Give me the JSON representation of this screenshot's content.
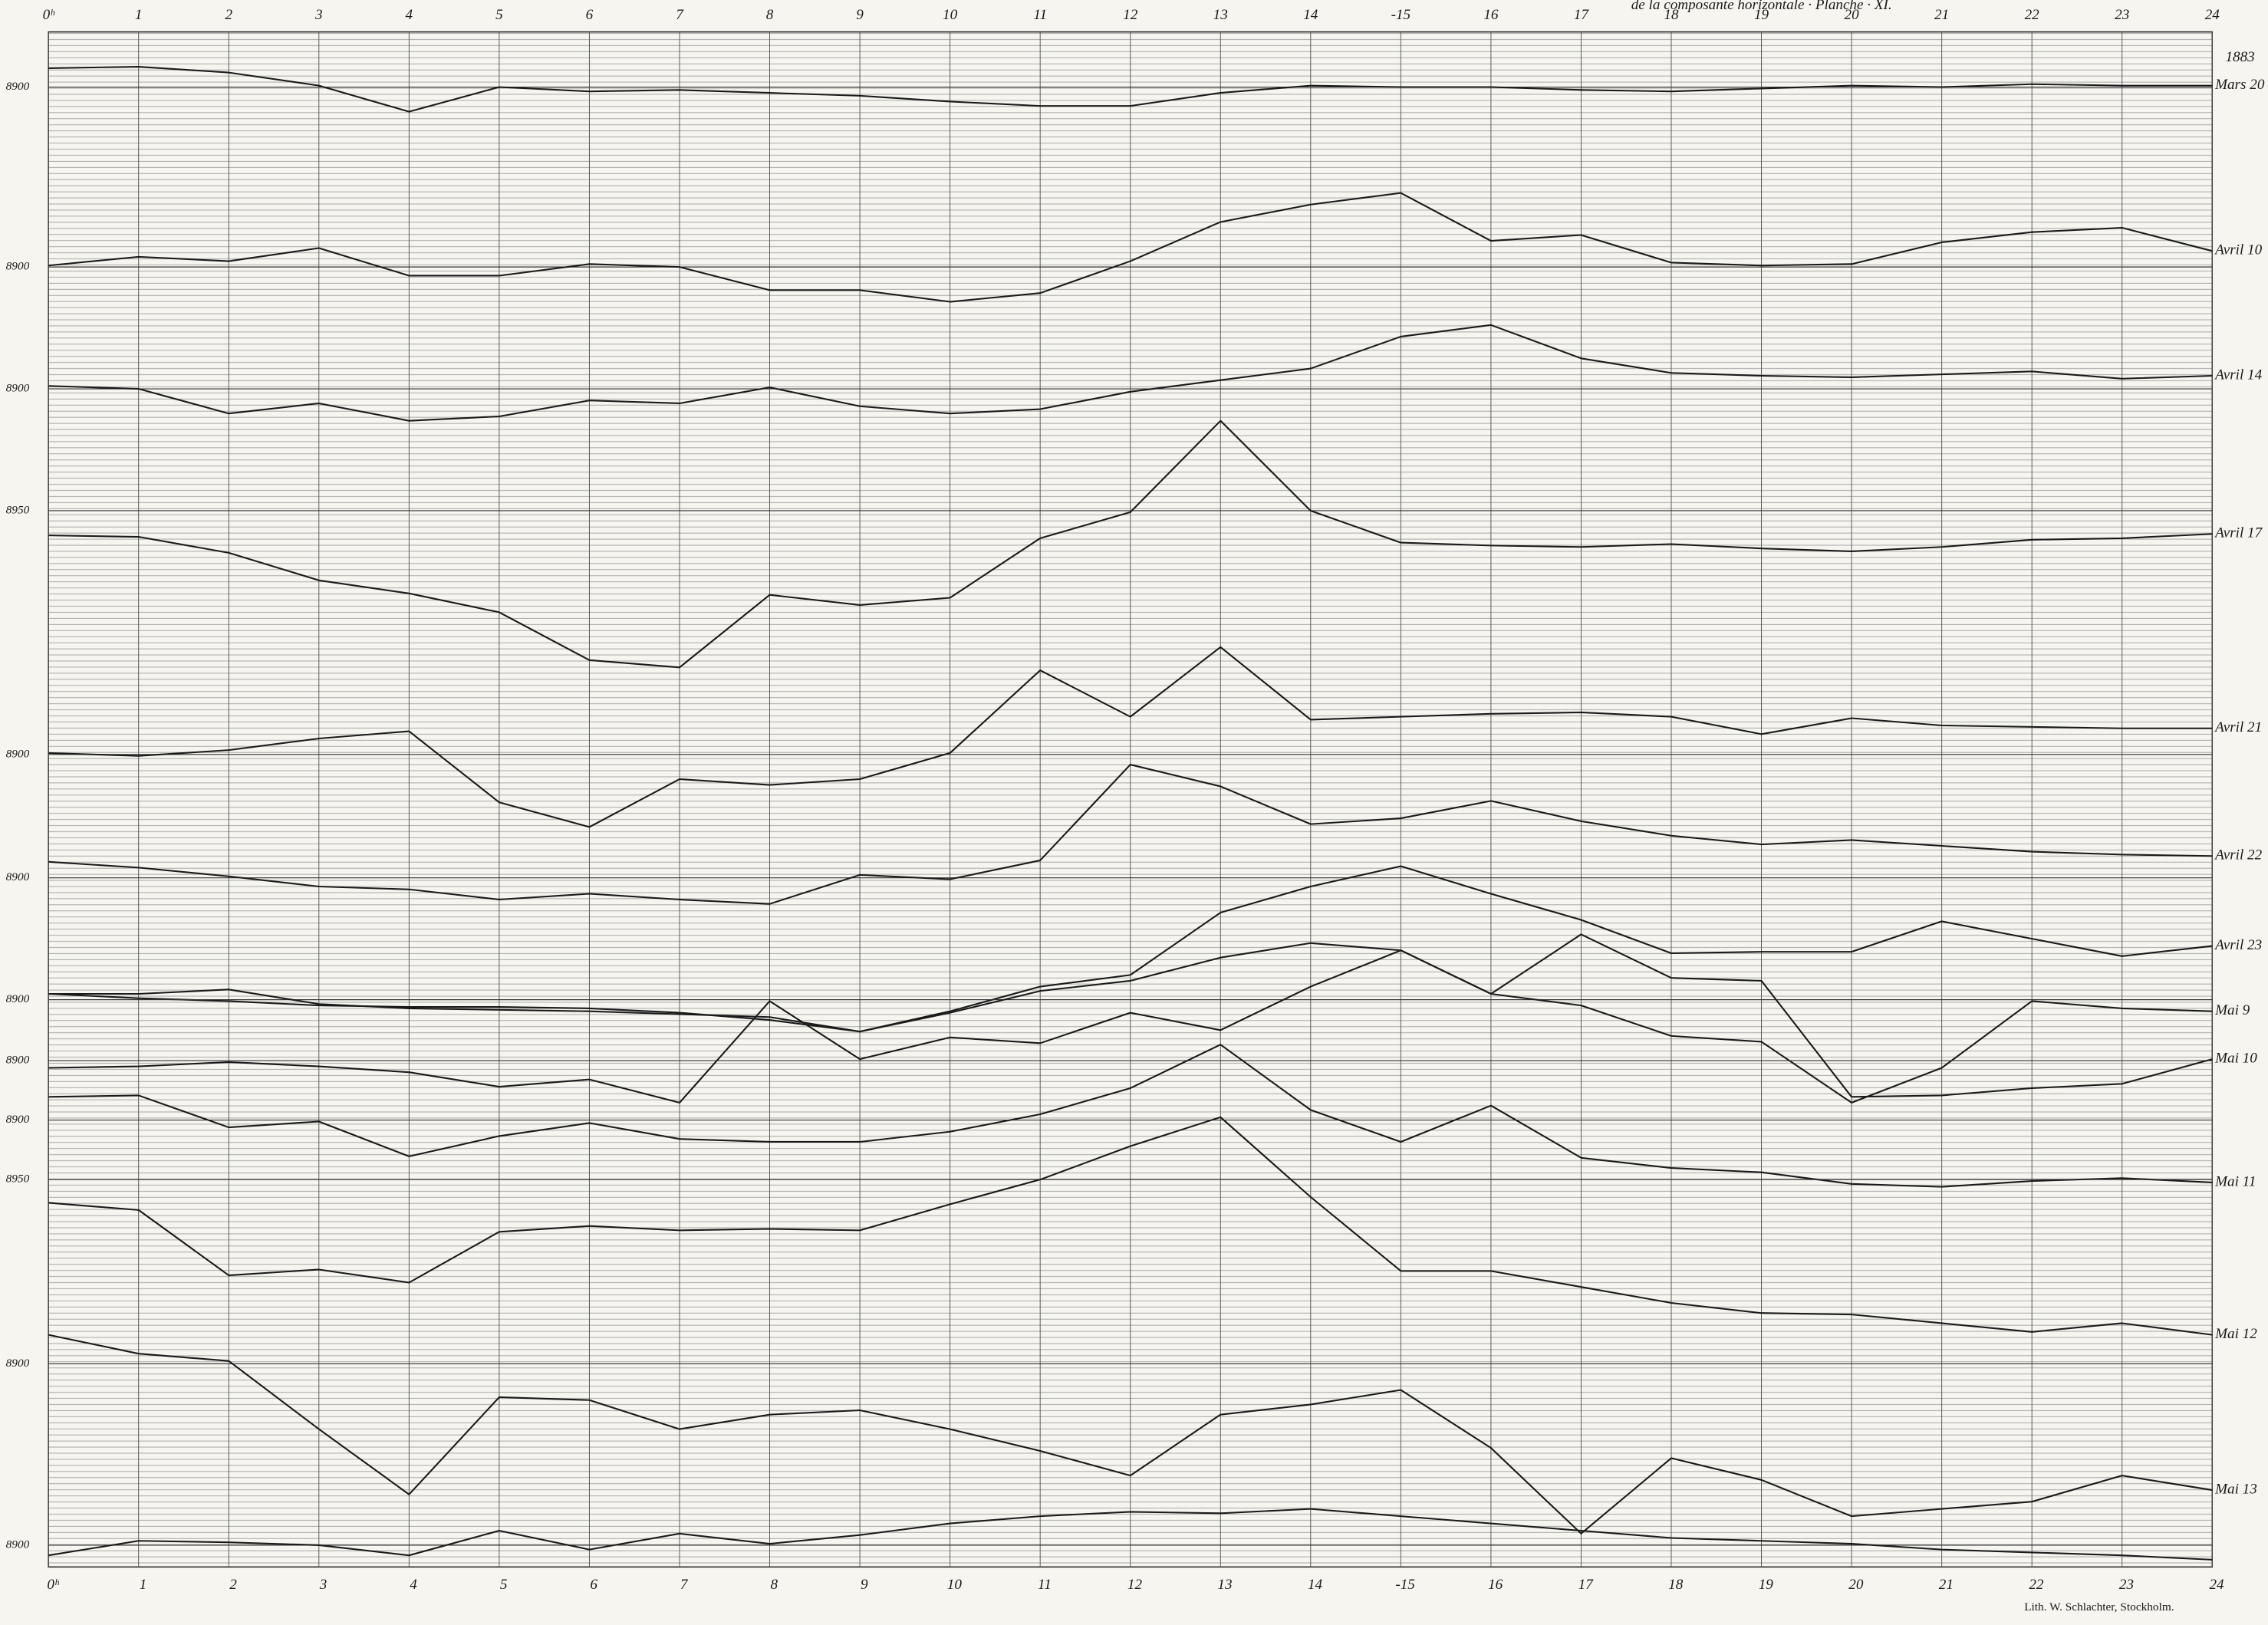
{
  "chart_data": {
    "type": "line",
    "header": "de la composante horizontale · Planche · XI.",
    "year": "1883",
    "credit": "Lith. W. Schlachter, Stockholm.",
    "categories": [
      "0ʰ",
      "1",
      "2",
      "3",
      "4",
      "5",
      "6",
      "7",
      "8",
      "9",
      "10",
      "11",
      "12",
      "13",
      "14",
      "-15",
      "16",
      "17",
      "18",
      "19",
      "20",
      "21",
      "22",
      "23",
      "24"
    ],
    "color": "#1a1a1a",
    "grid": true,
    "series": [
      {
        "name": "Mars 20",
        "ref": 8900,
        "values": [
          8906.5,
          8907,
          8905,
          8900.5,
          8891.5,
          8900,
          8898.5,
          8899,
          8898,
          8897,
          8895,
          8893.5,
          8893.5,
          8898,
          8900.5,
          8900,
          8900,
          8899,
          8898.5,
          8899.5,
          8900.5,
          8900,
          8901,
          8900.5,
          8900.5
        ]
      },
      {
        "name": "Avril 10",
        "ref": 8900,
        "values": [
          8900.5,
          8903.5,
          8902,
          8906.5,
          8897,
          8897,
          8901,
          8900,
          8892,
          8892,
          8888,
          8891,
          8902,
          8915.5,
          8921.5,
          8925.5,
          8909,
          8911,
          8901.5,
          8900.5,
          8901,
          8908.5,
          8912,
          8913.5,
          8905.5
        ]
      },
      {
        "name": "Avril 14",
        "ref": 8900,
        "values": [
          8901,
          8900,
          8891.5,
          8895,
          8889,
          8890.5,
          8896,
          8895,
          8900.5,
          8894,
          8891.5,
          8893,
          8899,
          8903,
          8907,
          8918,
          8922,
          8910.5,
          8905.5,
          8904.5,
          8904,
          8905,
          8906,
          8903.5,
          8904.5
        ]
      },
      {
        "name": "Avril 17",
        "ref": 8950,
        "values": [
          8941.5,
          8941,
          8935.5,
          8926,
          8921.5,
          8915,
          8898.5,
          8896,
          8921,
          8917.5,
          8920,
          8940.5,
          8949.5,
          8981,
          8950,
          8939,
          8938,
          8937.5,
          8938.5,
          8937,
          8936,
          8937.5,
          8940,
          8940.5,
          8942
        ]
      },
      {
        "name": "Avril 21",
        "ref": 8900,
        "values": [
          8900.5,
          8899.5,
          8901.5,
          8905.5,
          8908,
          8883.5,
          8875,
          8891.5,
          8889.5,
          8891.5,
          8900.5,
          8929,
          8913,
          8937,
          8912,
          8913,
          8914,
          8914.5,
          8913,
          8907,
          8912.5,
          8910,
          8909.5,
          8909,
          8909
        ]
      },
      {
        "name": "Avril 22",
        "ref": 8900,
        "values": [
          8905.5,
          8903.5,
          8900.5,
          8897,
          8896,
          8892.5,
          8894.5,
          8892.5,
          8891,
          8901,
          8899.5,
          8906,
          8939,
          8931.5,
          8918.5,
          8920.5,
          8926.5,
          8919.5,
          8914.5,
          8911.5,
          8913,
          8911,
          8909,
          8908,
          8907.5
        ]
      },
      {
        "name": "Avril 23",
        "values": [
          8902,
          8900.5,
          8899.5,
          8898,
          8897.5,
          8897.5,
          8897,
          8895.5,
          8893,
          8889,
          8896,
          8904.5,
          8908.5,
          8930,
          8939,
          8946,
          8936.5,
          8927.5,
          8916,
          8916.5,
          8916.5,
          8927,
          8921,
          8915,
          8918.5
        ]
      },
      {
        "name": "Mai 9",
        "ref": 8900,
        "values": [
          8902,
          8902,
          8903.5,
          8898.5,
          8897,
          8896.5,
          8896,
          8895,
          8894,
          8889,
          8895.5,
          8903,
          8906.5,
          8914.5,
          8919.5,
          8917,
          8902,
          8898,
          8887.5,
          8885.5,
          8864.5,
          8876.5,
          8899.5,
          8897,
          8896
        ]
      },
      {
        "name": "Mai 10",
        "ref": 8900,
        "values": [
          8897.5,
          8898,
          8899.5,
          8898,
          8896,
          8891,
          8893.5,
          8885.5,
          8920.5,
          8900.5,
          8908,
          8906,
          8916.5,
          8910.5,
          8925.5,
          8938,
          8923,
          8943.5,
          8928.5,
          8927.5,
          8887.5,
          8888,
          8890.5,
          8892,
          8900.5
        ]
      },
      {
        "name": "Mai 11",
        "ref": 8900,
        "values": [
          8908,
          8908.5,
          8897.5,
          8899.5,
          8887.5,
          8894.5,
          8899,
          8893.5,
          8892.5,
          8892.5,
          8896,
          8902,
          8911,
          8926,
          8903.5,
          8892.5,
          8905,
          8887,
          8883.5,
          8882,
          8878,
          8877,
          8879,
          8880,
          8878.5
        ]
      },
      {
        "name": "Mai 12",
        "ref": 8950,
        "values": [
          8942,
          8939.5,
          8917,
          8919,
          8914.5,
          8932,
          8934,
          8932.5,
          8933,
          8932.5,
          8941.5,
          8950,
          8961.5,
          8971.5,
          8944,
          8918.5,
          8918.5,
          8913,
          8907.5,
          8904,
          8903.5,
          8900.5,
          8897.5,
          8900.5,
          8896.5
        ]
      },
      {
        "name": "Mai 13",
        "ref": 8900,
        "values": [
          8910,
          8903.5,
          8901,
          8877.5,
          8855,
          8888.5,
          8887.5,
          8877.5,
          8882.5,
          8884,
          8877.5,
          8870,
          8861.5,
          8882.5,
          8886,
          8891,
          8871,
          8841.5,
          8867.5,
          8860,
          8847.5,
          8850,
          8852.5,
          8861.5,
          8856.5
        ]
      },
      {
        "ref": 8900,
        "values": [
          8896.5,
          8901.5,
          8901,
          8900,
          8896.5,
          8905,
          8898.5,
          8904,
          8900.5,
          8903.5,
          8907.5,
          8910,
          8911.5,
          8911,
          8912.5,
          8910,
          8907.5,
          8905,
          8902.5,
          8901.5,
          8900.5,
          8898.5,
          8897.5,
          8896.5,
          8895
        ]
      }
    ]
  }
}
